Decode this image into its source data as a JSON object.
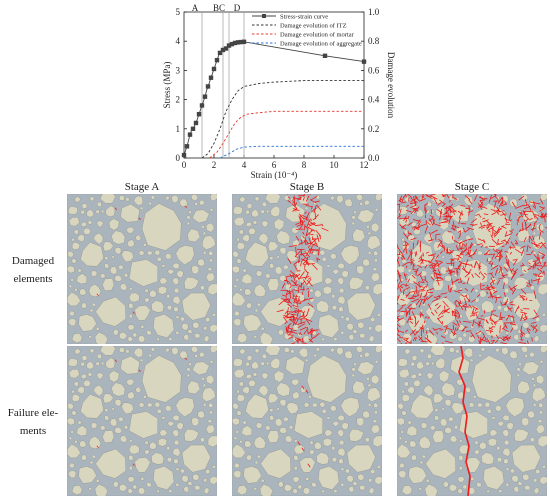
{
  "chart_data": {
    "type": "line",
    "xlabel": "Strain (10⁻⁴)",
    "ylabel": "Stress (MPa)",
    "y2label": "Damage evolution",
    "xlim": [
      0,
      12
    ],
    "ylim": [
      0,
      5
    ],
    "y2lim": [
      0,
      1.0
    ],
    "xticks": [
      "0",
      "2",
      "4",
      "6",
      "8",
      "10",
      "12"
    ],
    "yticks": [
      "0",
      "1",
      "2",
      "3",
      "4",
      "5"
    ],
    "y2ticks": [
      "0.0",
      "0.2",
      "0.4",
      "0.6",
      "0.8",
      "1.0"
    ],
    "stage_lines": [
      {
        "label": "A",
        "x": 1.2
      },
      {
        "label": "B",
        "x": 2.6
      },
      {
        "label": "C",
        "x": 3.0
      },
      {
        "label": "D",
        "x": 4.0
      }
    ],
    "legend_position": "top-right",
    "series": [
      {
        "name": "Stress-strain curve",
        "axis": "left",
        "style": "solid-square",
        "color": "#444444",
        "x": [
          0,
          0.1,
          0.2,
          0.3,
          0.4,
          0.5,
          0.6,
          0.7,
          0.8,
          0.9,
          1.0,
          1.1,
          1.2,
          1.3,
          1.4,
          1.5,
          1.6,
          1.7,
          1.8,
          1.9,
          2.0,
          2.1,
          2.2,
          2.3,
          2.4,
          2.5,
          2.6,
          2.7,
          2.8,
          2.9,
          3.0,
          3.1,
          3.2,
          3.3,
          3.4,
          3.5,
          3.6,
          3.7,
          3.8,
          3.9,
          4.0,
          9.4,
          12.0
        ],
        "y": [
          0.1,
          0.25,
          0.4,
          0.6,
          0.8,
          0.95,
          1.0,
          1.1,
          1.2,
          1.35,
          1.5,
          1.65,
          1.8,
          1.95,
          2.1,
          2.3,
          2.45,
          2.6,
          2.75,
          2.9,
          3.05,
          3.2,
          3.35,
          3.5,
          3.6,
          3.65,
          3.7,
          3.72,
          3.75,
          3.78,
          3.85,
          3.88,
          3.9,
          3.92,
          3.94,
          3.95,
          3.96,
          3.97,
          3.97,
          3.98,
          3.98,
          3.5,
          3.3
        ]
      },
      {
        "name": "Damage evolution of ITZ",
        "axis": "right",
        "style": "dashed",
        "color": "#333333",
        "x": [
          1.2,
          1.6,
          2.0,
          2.4,
          2.8,
          3.2,
          3.6,
          4.0,
          5.0,
          6.0,
          8.0,
          10.0,
          12.0
        ],
        "y": [
          0.0,
          0.03,
          0.1,
          0.2,
          0.32,
          0.4,
          0.46,
          0.49,
          0.51,
          0.52,
          0.53,
          0.53,
          0.53
        ]
      },
      {
        "name": "Damage evolution of mortar",
        "axis": "right",
        "style": "dashed",
        "color": "#e8382c",
        "x": [
          1.7,
          2.2,
          2.6,
          3.0,
          3.4,
          3.8,
          4.2,
          5.0,
          6.0,
          8.0,
          10.0,
          12.0
        ],
        "y": [
          0.0,
          0.04,
          0.1,
          0.17,
          0.24,
          0.28,
          0.3,
          0.31,
          0.32,
          0.32,
          0.32,
          0.32
        ]
      },
      {
        "name": "Damage evolution of aggregate",
        "axis": "right",
        "style": "dashed",
        "color": "#2d74d4",
        "x": [
          2.4,
          3.0,
          3.5,
          4.0,
          5.0,
          6.0,
          8.0,
          10.0,
          12.0
        ],
        "y": [
          0.0,
          0.03,
          0.06,
          0.075,
          0.08,
          0.08,
          0.08,
          0.08,
          0.08
        ]
      }
    ]
  },
  "stages": {
    "a": "Stage A",
    "b": "Stage B",
    "c": "Stage C"
  },
  "rows": {
    "damaged_line1": "Damaged",
    "damaged_line2": "elements",
    "failure_line1": "Failure ele-",
    "failure_line2": "ments"
  },
  "colors": {
    "mortar": "#a9b4bd",
    "aggregate": "#d9d6bf",
    "aggregate_edge": "#8a8d86",
    "crack": "#ee1b1b"
  }
}
